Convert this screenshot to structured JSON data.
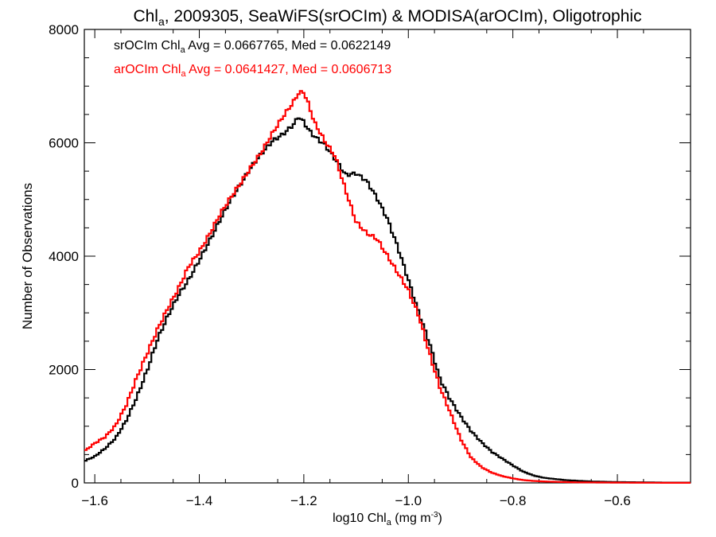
{
  "chart_data": {
    "type": "line",
    "title_prefix": "Chl",
    "title_sub": "a",
    "title_rest": ", 2009305, SeaWiFS(srOCIm) & MODISA(arOCIm), Oligotrophic",
    "xlabel_prefix": "log10 Chl",
    "xlabel_sub": "a",
    "xlabel_rest": " (mg m",
    "xlabel_sup": "-3",
    "xlabel_end": ")",
    "ylabel": "Number of Observations",
    "xlim": [
      -1.62,
      -0.46
    ],
    "ylim": [
      0,
      8000
    ],
    "xticks": [
      -1.6,
      -1.4,
      -1.2,
      -1.0,
      -0.8,
      -0.6
    ],
    "xtick_labels": [
      "−1.6",
      "−1.4",
      "−1.2",
      "−1.0",
      "−0.8",
      "−0.6"
    ],
    "yticks": [
      0,
      2000,
      4000,
      6000,
      8000
    ],
    "ytick_labels": [
      "0",
      "2000",
      "4000",
      "6000",
      "8000"
    ],
    "grid": false,
    "legend_placement": "top-left",
    "series": [
      {
        "name": "srOCIm",
        "color": "#000000",
        "legend_prefix": "srOCIm Chl",
        "legend_sub": "a",
        "legend_rest": " Avg = 0.0667765, Med = 0.0622149",
        "x": [
          -1.62,
          -1.6,
          -1.58,
          -1.56,
          -1.54,
          -1.52,
          -1.5,
          -1.48,
          -1.46,
          -1.44,
          -1.42,
          -1.4,
          -1.38,
          -1.36,
          -1.34,
          -1.32,
          -1.3,
          -1.28,
          -1.26,
          -1.24,
          -1.22,
          -1.21,
          -1.2,
          -1.19,
          -1.18,
          -1.16,
          -1.14,
          -1.12,
          -1.1,
          -1.08,
          -1.06,
          -1.04,
          -1.02,
          -1.0,
          -0.98,
          -0.96,
          -0.94,
          -0.92,
          -0.9,
          -0.88,
          -0.86,
          -0.84,
          -0.82,
          -0.8,
          -0.78,
          -0.76,
          -0.74,
          -0.72,
          -0.7,
          -0.68,
          -0.65,
          -0.6,
          -0.55,
          -0.5,
          -0.46
        ],
        "y": [
          380,
          460,
          600,
          780,
          1080,
          1480,
          1950,
          2500,
          2920,
          3280,
          3560,
          3900,
          4250,
          4620,
          4970,
          5260,
          5560,
          5800,
          6010,
          6130,
          6300,
          6440,
          6350,
          6200,
          6100,
          5950,
          5700,
          5420,
          5450,
          5320,
          5020,
          4650,
          4150,
          3580,
          3000,
          2480,
          1850,
          1480,
          1180,
          920,
          720,
          550,
          430,
          310,
          200,
          130,
          90,
          70,
          50,
          40,
          25,
          15,
          10,
          5,
          5
        ]
      },
      {
        "name": "arOCIm",
        "color": "#ff0000",
        "legend_prefix": "arOCIm Chl",
        "legend_sub": "a",
        "legend_rest": " Avg = 0.0641427, Med = 0.0606713",
        "x": [
          -1.62,
          -1.6,
          -1.58,
          -1.56,
          -1.54,
          -1.52,
          -1.5,
          -1.48,
          -1.46,
          -1.44,
          -1.42,
          -1.4,
          -1.38,
          -1.36,
          -1.34,
          -1.32,
          -1.3,
          -1.28,
          -1.26,
          -1.24,
          -1.22,
          -1.21,
          -1.2,
          -1.19,
          -1.18,
          -1.16,
          -1.14,
          -1.12,
          -1.1,
          -1.08,
          -1.06,
          -1.04,
          -1.02,
          -1.0,
          -0.98,
          -0.96,
          -0.94,
          -0.92,
          -0.9,
          -0.88,
          -0.86,
          -0.84,
          -0.82,
          -0.8,
          -0.78,
          -0.76,
          -0.74,
          -0.72,
          -0.7,
          -0.68,
          -0.65,
          -0.6,
          -0.55,
          -0.5,
          -0.46
        ],
        "y": [
          550,
          690,
          800,
          1000,
          1350,
          1820,
          2250,
          2680,
          3060,
          3400,
          3800,
          4050,
          4370,
          4720,
          5010,
          5280,
          5560,
          5830,
          6150,
          6440,
          6700,
          6860,
          6880,
          6640,
          6350,
          6020,
          5750,
          5150,
          4600,
          4400,
          4300,
          4000,
          3700,
          3400,
          2950,
          2300,
          1700,
          1250,
          780,
          450,
          280,
          180,
          120,
          80,
          50,
          35,
          25,
          20,
          15,
          10,
          8,
          5,
          3,
          2,
          2
        ]
      }
    ]
  }
}
